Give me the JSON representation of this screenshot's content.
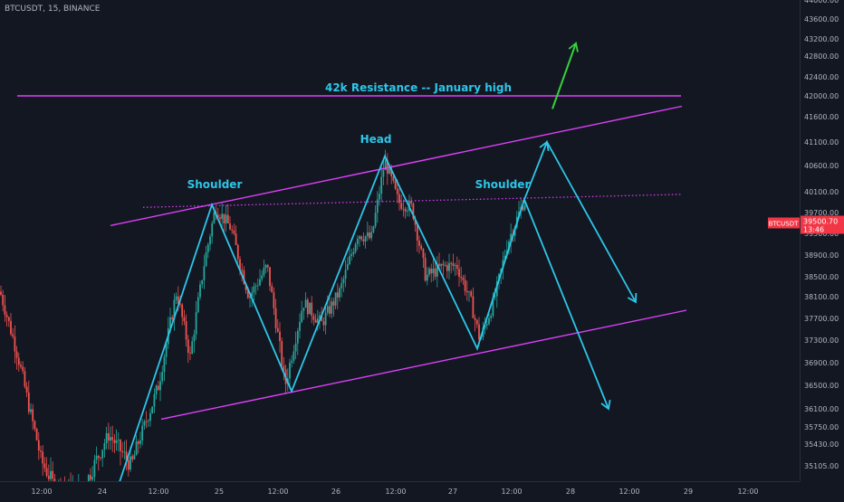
{
  "header": {
    "symbol_info": "BTCUSDT, 15, BINANCE"
  },
  "price_tag": {
    "symbol": "BTCUSDT",
    "price": "39500.70",
    "countdown": "13:46",
    "color": "#f23645"
  },
  "colors": {
    "background": "#131722",
    "up_candle": "#26a69a",
    "down_candle": "#ef5350",
    "trendline": "#e040fb",
    "pattern": "#2dc6e8",
    "arrow_up": "#36d13c",
    "axis_text": "#b2b5be"
  },
  "chart_data": {
    "type": "candlestick",
    "ylim": [
      34900,
      44150
    ],
    "price_ticks": [
      35105,
      35430,
      35750,
      36100,
      36500,
      36900,
      37300,
      37700,
      38100,
      38500,
      38900,
      39300,
      39700,
      40100,
      40600,
      41100,
      41600,
      42000,
      42400,
      42800,
      43200,
      43600,
      44000
    ],
    "price_tick_labels": [
      "35105.00",
      "35430.00",
      "35750.00",
      "36100.00",
      "36500.00",
      "36900.00",
      "37300.00",
      "37700.00",
      "38100.00",
      "38500.00",
      "38900.00",
      "39300.00",
      "39700.00",
      "40100.00",
      "40600.00",
      "41100.00",
      "41600.00",
      "42000.00",
      "42400.00",
      "42800.00",
      "43200.00",
      "43600.00",
      "44000.00"
    ],
    "time_labels": [
      "12:00",
      "24",
      "12:00",
      "25",
      "12:00",
      "26",
      "12:00",
      "27",
      "12:00",
      "28",
      "12:00",
      "29",
      "12:00"
    ],
    "candle_path": [
      [
        0,
        38200
      ],
      [
        20,
        37000
      ],
      [
        45,
        35200
      ],
      [
        60,
        34800
      ],
      [
        90,
        34700
      ],
      [
        120,
        35600
      ],
      [
        145,
        35100
      ],
      [
        175,
        36500
      ],
      [
        195,
        38200
      ],
      [
        210,
        37000
      ],
      [
        225,
        38700
      ],
      [
        238,
        39800
      ],
      [
        255,
        39400
      ],
      [
        275,
        38100
      ],
      [
        295,
        38700
      ],
      [
        315,
        36500
      ],
      [
        335,
        38000
      ],
      [
        355,
        37600
      ],
      [
        375,
        38200
      ],
      [
        395,
        39300
      ],
      [
        410,
        39200
      ],
      [
        425,
        40700
      ],
      [
        440,
        39900
      ],
      [
        455,
        39800
      ],
      [
        470,
        38500
      ],
      [
        490,
        38700
      ],
      [
        505,
        38700
      ],
      [
        520,
        38000
      ],
      [
        530,
        37300
      ],
      [
        545,
        38000
      ],
      [
        560,
        39100
      ],
      [
        578,
        39900
      ]
    ],
    "annotations": [
      {
        "text": "42k Resistance -- January high",
        "price": 42000
      },
      {
        "text": "Shoulder",
        "price": 40100
      },
      {
        "text": "Head",
        "price": 41150
      },
      {
        "text": "Shoulder",
        "price": 40100
      }
    ],
    "resistance_line": {
      "price": 42000
    },
    "neckline": {
      "price": 39950
    },
    "channel_upper": [
      {
        "time": "24 ~00:00",
        "price": 39450
      },
      {
        "time": "29 ~00:00",
        "price": 41800
      }
    ],
    "channel_lower": [
      {
        "time": "24 ~16:00",
        "price": 35900
      },
      {
        "time": "29 ~00:00",
        "price": 37850
      }
    ],
    "pattern_path": [
      {
        "price": 34700
      },
      {
        "price": 39850
      },
      {
        "price": 36400
      },
      {
        "price": 40800
      },
      {
        "price": 37150
      },
      {
        "price": 39950
      },
      {
        "price": 41100
      },
      {
        "price": 38000
      }
    ],
    "projection_2": [
      {
        "price": 39950
      },
      {
        "price": 36100
      }
    ],
    "breakout_arrow": [
      {
        "price": 41750
      },
      {
        "price": 43100
      }
    ]
  }
}
